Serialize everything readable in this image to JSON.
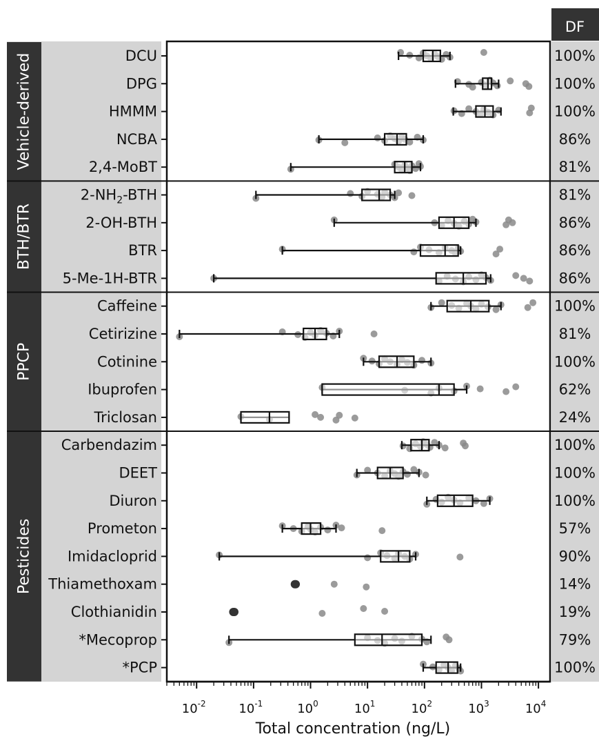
{
  "chart_data": {
    "type": "box",
    "xlabel": "Total concentration (ng/L)",
    "xscale": "log",
    "xlim": [
      0.003,
      16000
    ],
    "x_ticks": [
      {
        "value": 0.01,
        "base": "10",
        "exp": "-2"
      },
      {
        "value": 0.1,
        "base": "10",
        "exp": "-1"
      },
      {
        "value": 1,
        "base": "10",
        "exp": "0"
      },
      {
        "value": 10,
        "base": "10",
        "exp": "1"
      },
      {
        "value": 100,
        "base": "10",
        "exp": "2"
      },
      {
        "value": 1000,
        "base": "10",
        "exp": "3"
      },
      {
        "value": 10000,
        "base": "10",
        "exp": "4"
      }
    ],
    "df_header": "DF",
    "colors": {
      "points": "#8a8a8a",
      "dark_points": "#333333",
      "group_bg": "#333333",
      "label_bg": "#d4d4d4",
      "box_fill": "#ffffff",
      "box_stroke": "#111111"
    },
    "groups": [
      {
        "name": "Vehicle-derived",
        "rows": [
          {
            "label": "DCU",
            "df": "100%",
            "min": 35,
            "q1": 95,
            "median": 140,
            "q3": 190,
            "max": 280,
            "points": [
              38,
              55,
              80,
              95,
              110,
              130,
              150,
              170,
              200,
              240,
              280,
              1100
            ]
          },
          {
            "label": "DPG",
            "df": "100%",
            "min": 350,
            "q1": 1050,
            "median": 1300,
            "q3": 1500,
            "max": 2000,
            "points": [
              380,
              600,
              700,
              1000,
              1200,
              1400,
              1600,
              1900,
              3200,
              6000,
              6800
            ]
          },
          {
            "label": "HMMM",
            "df": "100%",
            "min": 320,
            "q1": 800,
            "median": 1150,
            "q3": 1600,
            "max": 2200,
            "points": [
              330,
              450,
              600,
              800,
              950,
              1100,
              1300,
              1600,
              2000,
              7000,
              7500
            ]
          },
          {
            "label": "NCBA",
            "df": "86%",
            "min": 1.4,
            "q1": 20,
            "median": 33,
            "q3": 48,
            "max": 95,
            "points": [
              1.4,
              4,
              15,
              20,
              25,
              30,
              35,
              40,
              45,
              55,
              75,
              95
            ]
          },
          {
            "label": "2,4-MoBT",
            "df": "81%",
            "min": 0.45,
            "q1": 30,
            "median": 45,
            "q3": 60,
            "max": 85,
            "points": [
              0.45,
              30,
              35,
              40,
              45,
              50,
              55,
              60,
              70,
              80,
              85
            ]
          }
        ]
      },
      {
        "name": "BTH/BTR",
        "rows": [
          {
            "label": "2-NH",
            "label_sub": "2",
            "label_tail": "-BTH",
            "df": "81%",
            "min": 0.11,
            "q1": 8,
            "median": 16,
            "q3": 25,
            "max": 30,
            "points": [
              0.11,
              5,
              8,
              10,
              15,
              18,
              20,
              25,
              30,
              35,
              60
            ]
          },
          {
            "label": "2-OH-BTH",
            "df": "86%",
            "min": 2.6,
            "q1": 180,
            "median": 330,
            "q3": 600,
            "max": 800,
            "points": [
              2.6,
              150,
              200,
              260,
              330,
              400,
              500,
              600,
              700,
              800,
              2700,
              3000,
              3500
            ]
          },
          {
            "label": "BTR",
            "df": "86%",
            "min": 0.32,
            "q1": 85,
            "median": 230,
            "q3": 390,
            "max": 430,
            "points": [
              0.32,
              65,
              85,
              120,
              180,
              230,
              300,
              350,
              390,
              430,
              1800,
              2100
            ]
          },
          {
            "label": "5-Me-1H-BTR",
            "df": "86%",
            "min": 0.02,
            "q1": 160,
            "median": 480,
            "q3": 1200,
            "max": 1450,
            "points": [
              0.02,
              180,
              250,
              350,
              480,
              600,
              800,
              1000,
              1200,
              1450,
              4000,
              5500,
              7000
            ]
          }
        ]
      },
      {
        "name": "PPCP",
        "rows": [
          {
            "label": "Caffeine",
            "df": "100%",
            "min": 130,
            "q1": 250,
            "median": 650,
            "q3": 1350,
            "max": 2200,
            "points": [
              130,
              200,
              300,
              400,
              550,
              650,
              800,
              1000,
              1300,
              1800,
              2200,
              6500,
              8000
            ]
          },
          {
            "label": "Cetirizine",
            "df": "81%",
            "min": 0.005,
            "q1": 0.75,
            "median": 1.2,
            "q3": 1.9,
            "max": 3.2,
            "points": [
              0.005,
              0.32,
              0.6,
              0.8,
              1,
              1.2,
              1.5,
              1.9,
              2.5,
              3.2,
              13
            ]
          },
          {
            "label": "Cotinine",
            "df": "100%",
            "min": 8.5,
            "q1": 16,
            "median": 33,
            "q3": 65,
            "max": 130,
            "points": [
              8.5,
              12,
              16,
              20,
              25,
              33,
              40,
              50,
              65,
              90,
              130
            ]
          },
          {
            "label": "Ibuprofen",
            "df": "62%",
            "min": 1.6,
            "q1": 1.6,
            "median": 180,
            "q3": 330,
            "max": 550,
            "points": [
              1.6,
              45,
              130,
              180,
              330,
              550,
              950,
              2700,
              4000
            ]
          },
          {
            "label": "Triclosan",
            "df": "24%",
            "min": 0.06,
            "q1": 0.06,
            "median": 0.19,
            "q3": 0.42,
            "max": 0.42,
            "points": [
              0.06,
              0.19,
              1.2,
              1.5,
              2.8,
              3.2,
              6
            ]
          }
        ]
      },
      {
        "name": "Pesticides",
        "rows": [
          {
            "label": "Carbendazim",
            "df": "100%",
            "min": 40,
            "q1": 58,
            "median": 90,
            "q3": 120,
            "max": 180,
            "points": [
              42,
              55,
              70,
              85,
              95,
              110,
              125,
              150,
              180,
              230,
              480,
              520
            ]
          },
          {
            "label": "DEET",
            "df": "100%",
            "min": 6.5,
            "q1": 15,
            "median": 25,
            "q3": 42,
            "max": 80,
            "points": [
              6.5,
              10,
              15,
              20,
              25,
              30,
              35,
              42,
              50,
              65,
              80,
              105
            ]
          },
          {
            "label": "Diuron",
            "df": "100%",
            "min": 110,
            "q1": 170,
            "median": 330,
            "q3": 700,
            "max": 1400,
            "points": [
              110,
              160,
              200,
              260,
              330,
              420,
              600,
              800,
              1100,
              1400
            ]
          },
          {
            "label": "Prometon",
            "df": "57%",
            "min": 0.32,
            "q1": 0.7,
            "median": 1,
            "q3": 1.5,
            "max": 2.8,
            "points": [
              0.32,
              0.5,
              0.7,
              0.9,
              1,
              1.2,
              1.5,
              2,
              2.8,
              3.5,
              18
            ]
          },
          {
            "label": "Imidacloprid",
            "df": "90%",
            "min": 0.025,
            "q1": 17,
            "median": 35,
            "q3": 55,
            "max": 70,
            "points": [
              0.025,
              10,
              17,
              22,
              30,
              35,
              45,
              55,
              70,
              420
            ]
          },
          {
            "label": "Thiamethoxam",
            "df": "14%",
            "points_dark": [
              0.53,
              0.55
            ],
            "points": [
              2.6,
              9.5
            ]
          },
          {
            "label": "Clothianidin",
            "df": "19%",
            "points_dark": [
              0.044,
              0.046
            ],
            "points": [
              1.6,
              8.5,
              20
            ]
          },
          {
            "label": "*Mecoprop",
            "df": "79%",
            "min": 0.037,
            "q1": 6,
            "median": 18,
            "q3": 90,
            "max": 130,
            "points": [
              0.037,
              10,
              15,
              20,
              30,
              40,
              60,
              90,
              110,
              240,
              270
            ]
          },
          {
            "label": "*PCP",
            "df": "100%",
            "min": 95,
            "q1": 160,
            "median": 260,
            "q3": 380,
            "max": 430,
            "points": [
              95,
              140,
              180,
              220,
              260,
              300,
              350,
              400,
              430
            ]
          }
        ]
      }
    ]
  }
}
